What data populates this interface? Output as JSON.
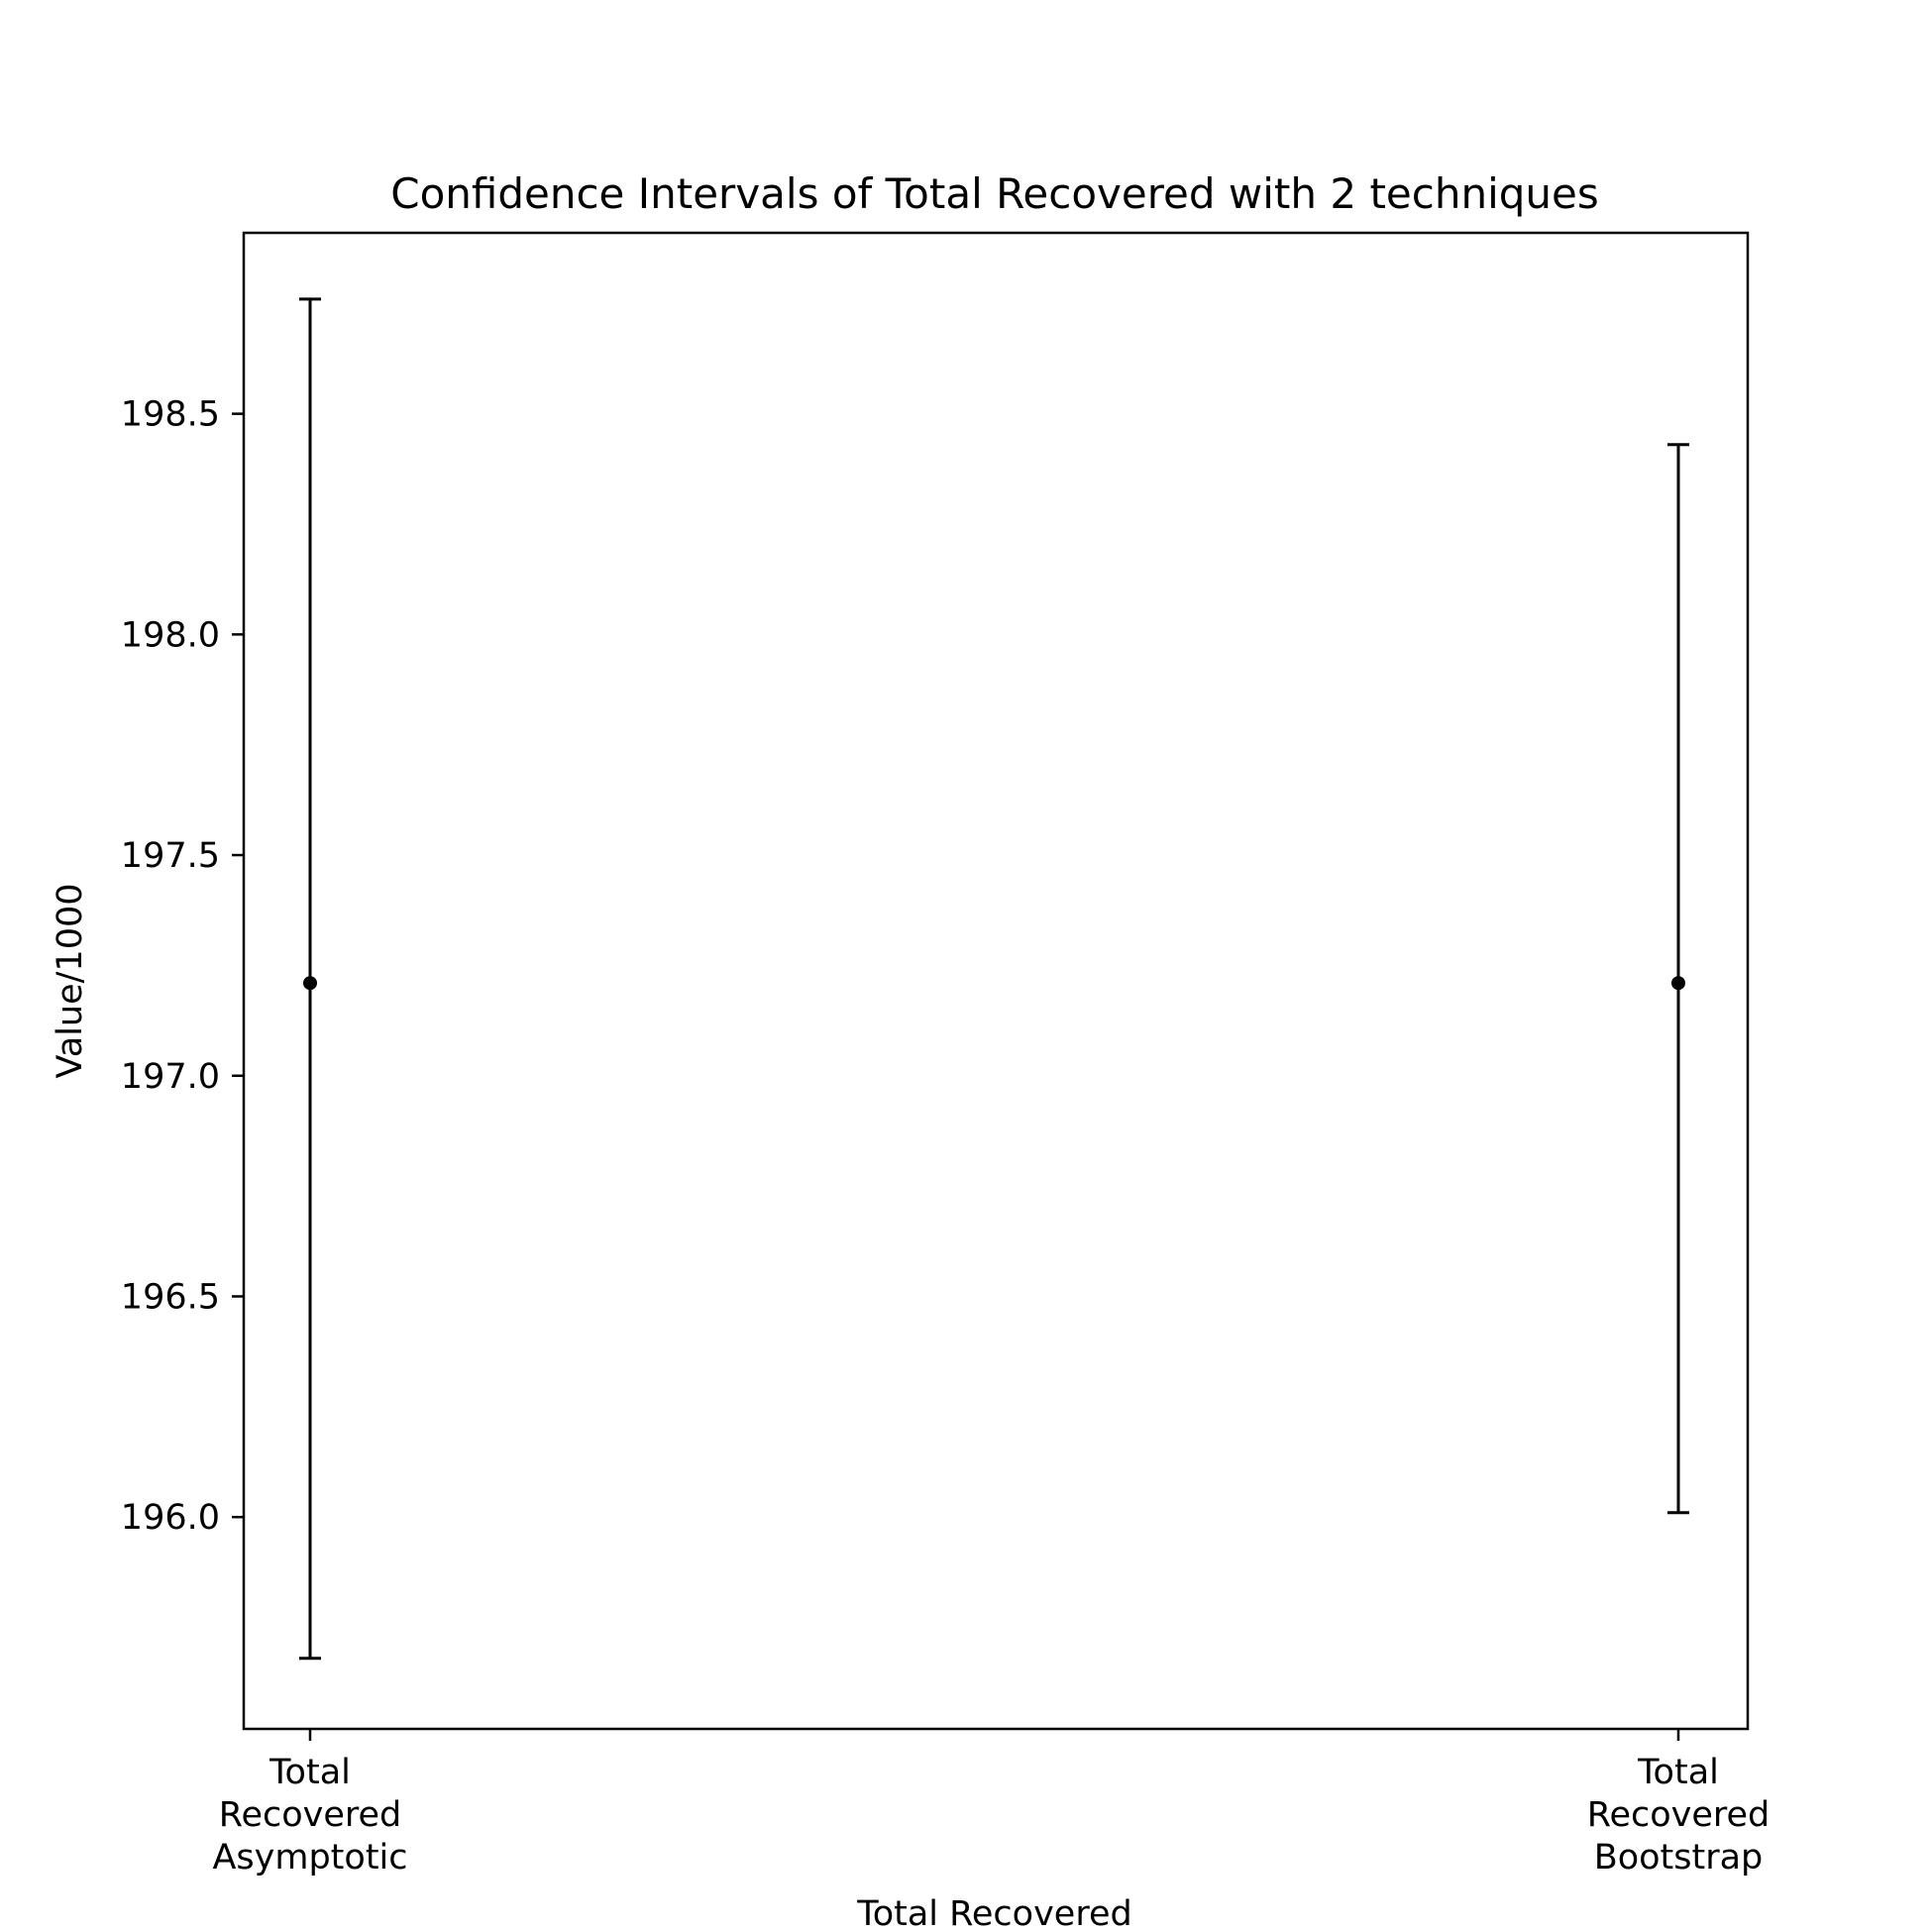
{
  "chart_data": {
    "type": "errorbar",
    "title": "Confidence Intervals of Total Recovered with 2 techniques",
    "xlabel": "Total Recovered",
    "ylabel": "Value/1000",
    "categories": [
      [
        "Total",
        "Recovered",
        "Asymptotic"
      ],
      [
        "Total",
        "Recovered",
        "Bootstrap"
      ]
    ],
    "points": [
      {
        "category": "Total Recovered Asymptotic",
        "value": 197.21,
        "lower": 195.68,
        "upper": 198.76
      },
      {
        "category": "Total Recovered Bootstrap",
        "value": 197.21,
        "lower": 196.01,
        "upper": 198.43
      }
    ],
    "yticks": [
      "196.0",
      "196.5",
      "197.0",
      "197.5",
      "198.0",
      "198.5"
    ],
    "ylim": [
      195.52,
      198.91
    ],
    "grid": false,
    "colors": {
      "marks": "#000000",
      "axes": "#000000",
      "background": "#ffffff"
    }
  }
}
